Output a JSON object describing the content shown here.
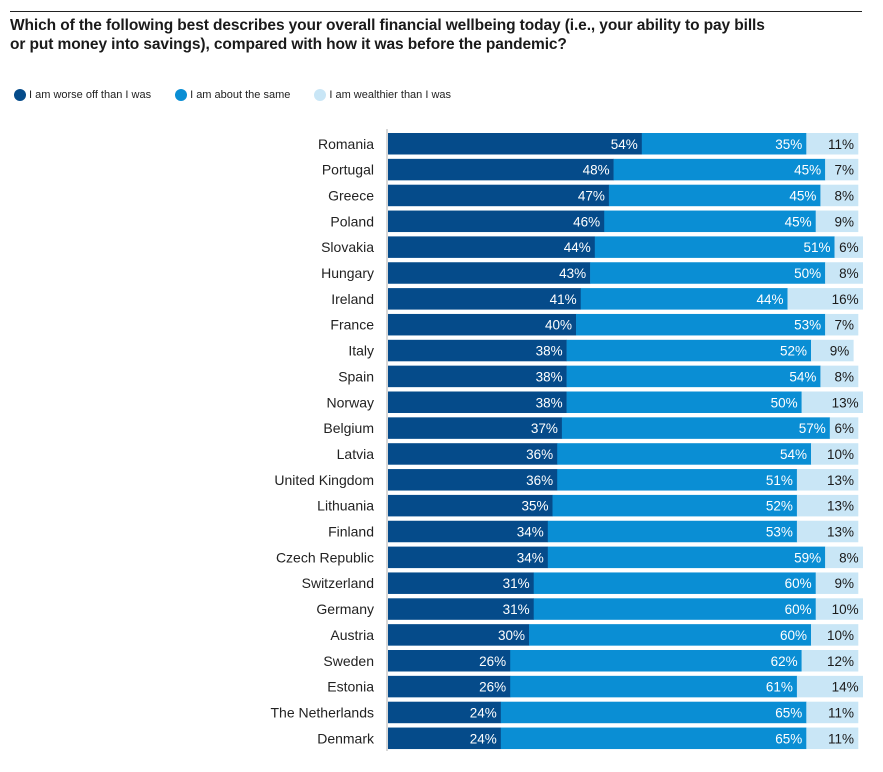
{
  "header": {
    "title_line1": "Which of the following best describes your overall financial wellbeing today (i.e., your ability to pay bills",
    "title_line2": "or put money into savings), compared with how it was before the pandemic?"
  },
  "colors": {
    "worse": "#054b8a",
    "same": "#0a8ed4",
    "wealthier": "#c9e6f6",
    "label_on_dark": "#ffffff",
    "label_on_light": "#1a1a1a",
    "axis": "#bfbfbf"
  },
  "chart_data": {
    "type": "bar",
    "orientation": "horizontal",
    "stacked": true,
    "title": "Which of the following best describes your overall financial wellbeing today (i.e., your ability to pay bills or put money into savings), compared with how it was before the pandemic?",
    "xlabel": "",
    "ylabel": "",
    "xlim": [
      0,
      100
    ],
    "grid": false,
    "legend_position": "top-left",
    "value_suffix": "%",
    "categories": [
      "Romania",
      "Portugal",
      "Greece",
      "Poland",
      "Slovakia",
      "Hungary",
      "Ireland",
      "France",
      "Italy",
      "Spain",
      "Norway",
      "Belgium",
      "Latvia",
      "United Kingdom",
      "Lithuania",
      "Finland",
      "Czech Republic",
      "Switzerland",
      "Germany",
      "Austria",
      "Sweden",
      "Estonia",
      "The Netherlands",
      "Denmark"
    ],
    "series": [
      {
        "name": "I am worse off than I was",
        "color": "#054b8a",
        "values": [
          54,
          48,
          47,
          46,
          44,
          43,
          41,
          40,
          38,
          38,
          38,
          37,
          36,
          36,
          35,
          34,
          34,
          31,
          31,
          30,
          26,
          26,
          24,
          24
        ]
      },
      {
        "name": "I am about the same",
        "color": "#0a8ed4",
        "values": [
          35,
          45,
          45,
          45,
          51,
          50,
          44,
          53,
          52,
          54,
          50,
          57,
          54,
          51,
          52,
          53,
          59,
          60,
          60,
          60,
          62,
          61,
          65,
          65
        ]
      },
      {
        "name": "I am wealthier than I was",
        "color": "#c9e6f6",
        "values": [
          11,
          7,
          8,
          9,
          6,
          8,
          16,
          7,
          9,
          8,
          13,
          6,
          10,
          13,
          13,
          13,
          8,
          9,
          10,
          10,
          12,
          14,
          11,
          11
        ]
      }
    ]
  }
}
